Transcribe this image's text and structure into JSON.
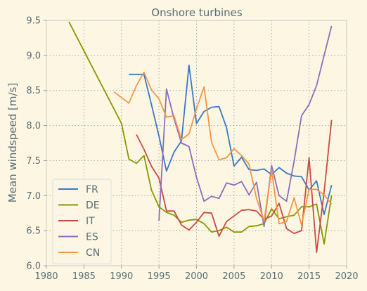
{
  "chart_data": {
    "type": "line",
    "title": "Onshore turbines",
    "xlabel": "",
    "ylabel": "Mean windspeed [m/s]",
    "xlim": [
      1980,
      2020
    ],
    "ylim": [
      6.0,
      9.5
    ],
    "xticks": [
      1980,
      1985,
      1990,
      1995,
      2000,
      2005,
      2010,
      2015,
      2020
    ],
    "yticks": [
      "6.0",
      "6.5",
      "7.0",
      "7.5",
      "8.0",
      "8.5",
      "9.0",
      "9.5"
    ],
    "grid": true,
    "legend_position": "lower-left",
    "series": [
      {
        "name": "FR",
        "color": "#3a78c3",
        "x": [
          1991,
          1992,
          1993,
          1994,
          1995,
          1996,
          1997,
          1998,
          1999,
          2000,
          2001,
          2002,
          2003,
          2004,
          2005,
          2006,
          2007,
          2008,
          2009,
          2010,
          2011,
          2012,
          2013,
          2014,
          2015,
          2016,
          2017,
          2018
        ],
        "y": [
          8.73,
          8.73,
          8.73,
          8.3,
          7.85,
          7.35,
          7.62,
          7.78,
          8.86,
          8.03,
          8.2,
          8.26,
          8.27,
          7.97,
          7.42,
          7.55,
          7.37,
          7.36,
          7.38,
          7.3,
          7.4,
          7.32,
          7.28,
          7.27,
          7.08,
          7.21,
          6.73,
          7.15
        ]
      },
      {
        "name": "DE",
        "color": "#859900",
        "x": [
          1983,
          1990,
          1991,
          1992,
          1993,
          1994,
          1995,
          1996,
          1997,
          1998,
          1999,
          2000,
          2001,
          2002,
          2003,
          2004,
          2005,
          2006,
          2007,
          2008,
          2009,
          2010,
          2011,
          2012,
          2013,
          2014,
          2015,
          2016,
          2017,
          2018
        ],
        "y": [
          9.48,
          8.03,
          7.52,
          7.46,
          7.57,
          7.08,
          6.84,
          6.76,
          6.72,
          6.62,
          6.65,
          6.66,
          6.6,
          6.48,
          6.5,
          6.55,
          6.48,
          6.48,
          6.56,
          6.57,
          6.6,
          6.81,
          6.67,
          6.7,
          6.72,
          6.84,
          6.84,
          6.88,
          6.31,
          7.0
        ]
      },
      {
        "name": "IT",
        "color": "#cb4b43",
        "x": [
          1992,
          1993,
          1994,
          1995,
          1996,
          1997,
          1998,
          1999,
          2000,
          2001,
          2002,
          2003,
          2004,
          2005,
          2006,
          2007,
          2008,
          2009,
          2010,
          2011,
          2012,
          2013,
          2014,
          2015,
          2016,
          2017,
          2018
        ],
        "y": [
          7.87,
          7.66,
          7.42,
          7.25,
          6.78,
          6.78,
          6.58,
          6.51,
          6.62,
          6.76,
          6.75,
          6.42,
          6.63,
          6.71,
          6.79,
          6.8,
          6.78,
          6.66,
          6.71,
          6.89,
          6.53,
          6.46,
          6.5,
          7.54,
          6.19,
          7.05,
          8.08
        ]
      },
      {
        "name": "ES",
        "color": "#8a6fbd",
        "x": [
          1995,
          1996,
          1997,
          1998,
          1999,
          2000,
          2001,
          2002,
          2003,
          2004,
          2005,
          2006,
          2007,
          2008,
          2009,
          2010,
          2011,
          2012,
          2013,
          2014,
          2015,
          2016,
          2017,
          2018
        ],
        "y": [
          6.64,
          8.52,
          8.1,
          7.75,
          7.7,
          7.26,
          6.92,
          6.99,
          6.96,
          7.18,
          7.15,
          7.2,
          7.01,
          7.19,
          6.56,
          7.43,
          7.0,
          6.92,
          7.49,
          8.14,
          8.3,
          8.57,
          9.0,
          9.42
        ]
      },
      {
        "name": "CN",
        "color": "#f79646",
        "x": [
          1989,
          1991,
          1992,
          1993,
          1994,
          1995,
          1996,
          1997,
          1998,
          1999,
          2000,
          2001,
          2002,
          2003,
          2004,
          2005,
          2006,
          2007,
          2008,
          2009,
          2010,
          2011,
          2012,
          2013,
          2014,
          2015,
          2016,
          2017,
          2018
        ],
        "y": [
          8.48,
          8.32,
          8.57,
          8.76,
          8.51,
          8.38,
          8.12,
          8.14,
          7.8,
          7.88,
          8.24,
          8.55,
          7.76,
          7.51,
          7.54,
          7.67,
          7.57,
          7.45,
          6.96,
          6.64,
          7.36,
          6.6,
          6.63,
          6.97,
          6.58,
          7.09,
          7.09,
          7.01,
          6.88
        ]
      }
    ]
  }
}
